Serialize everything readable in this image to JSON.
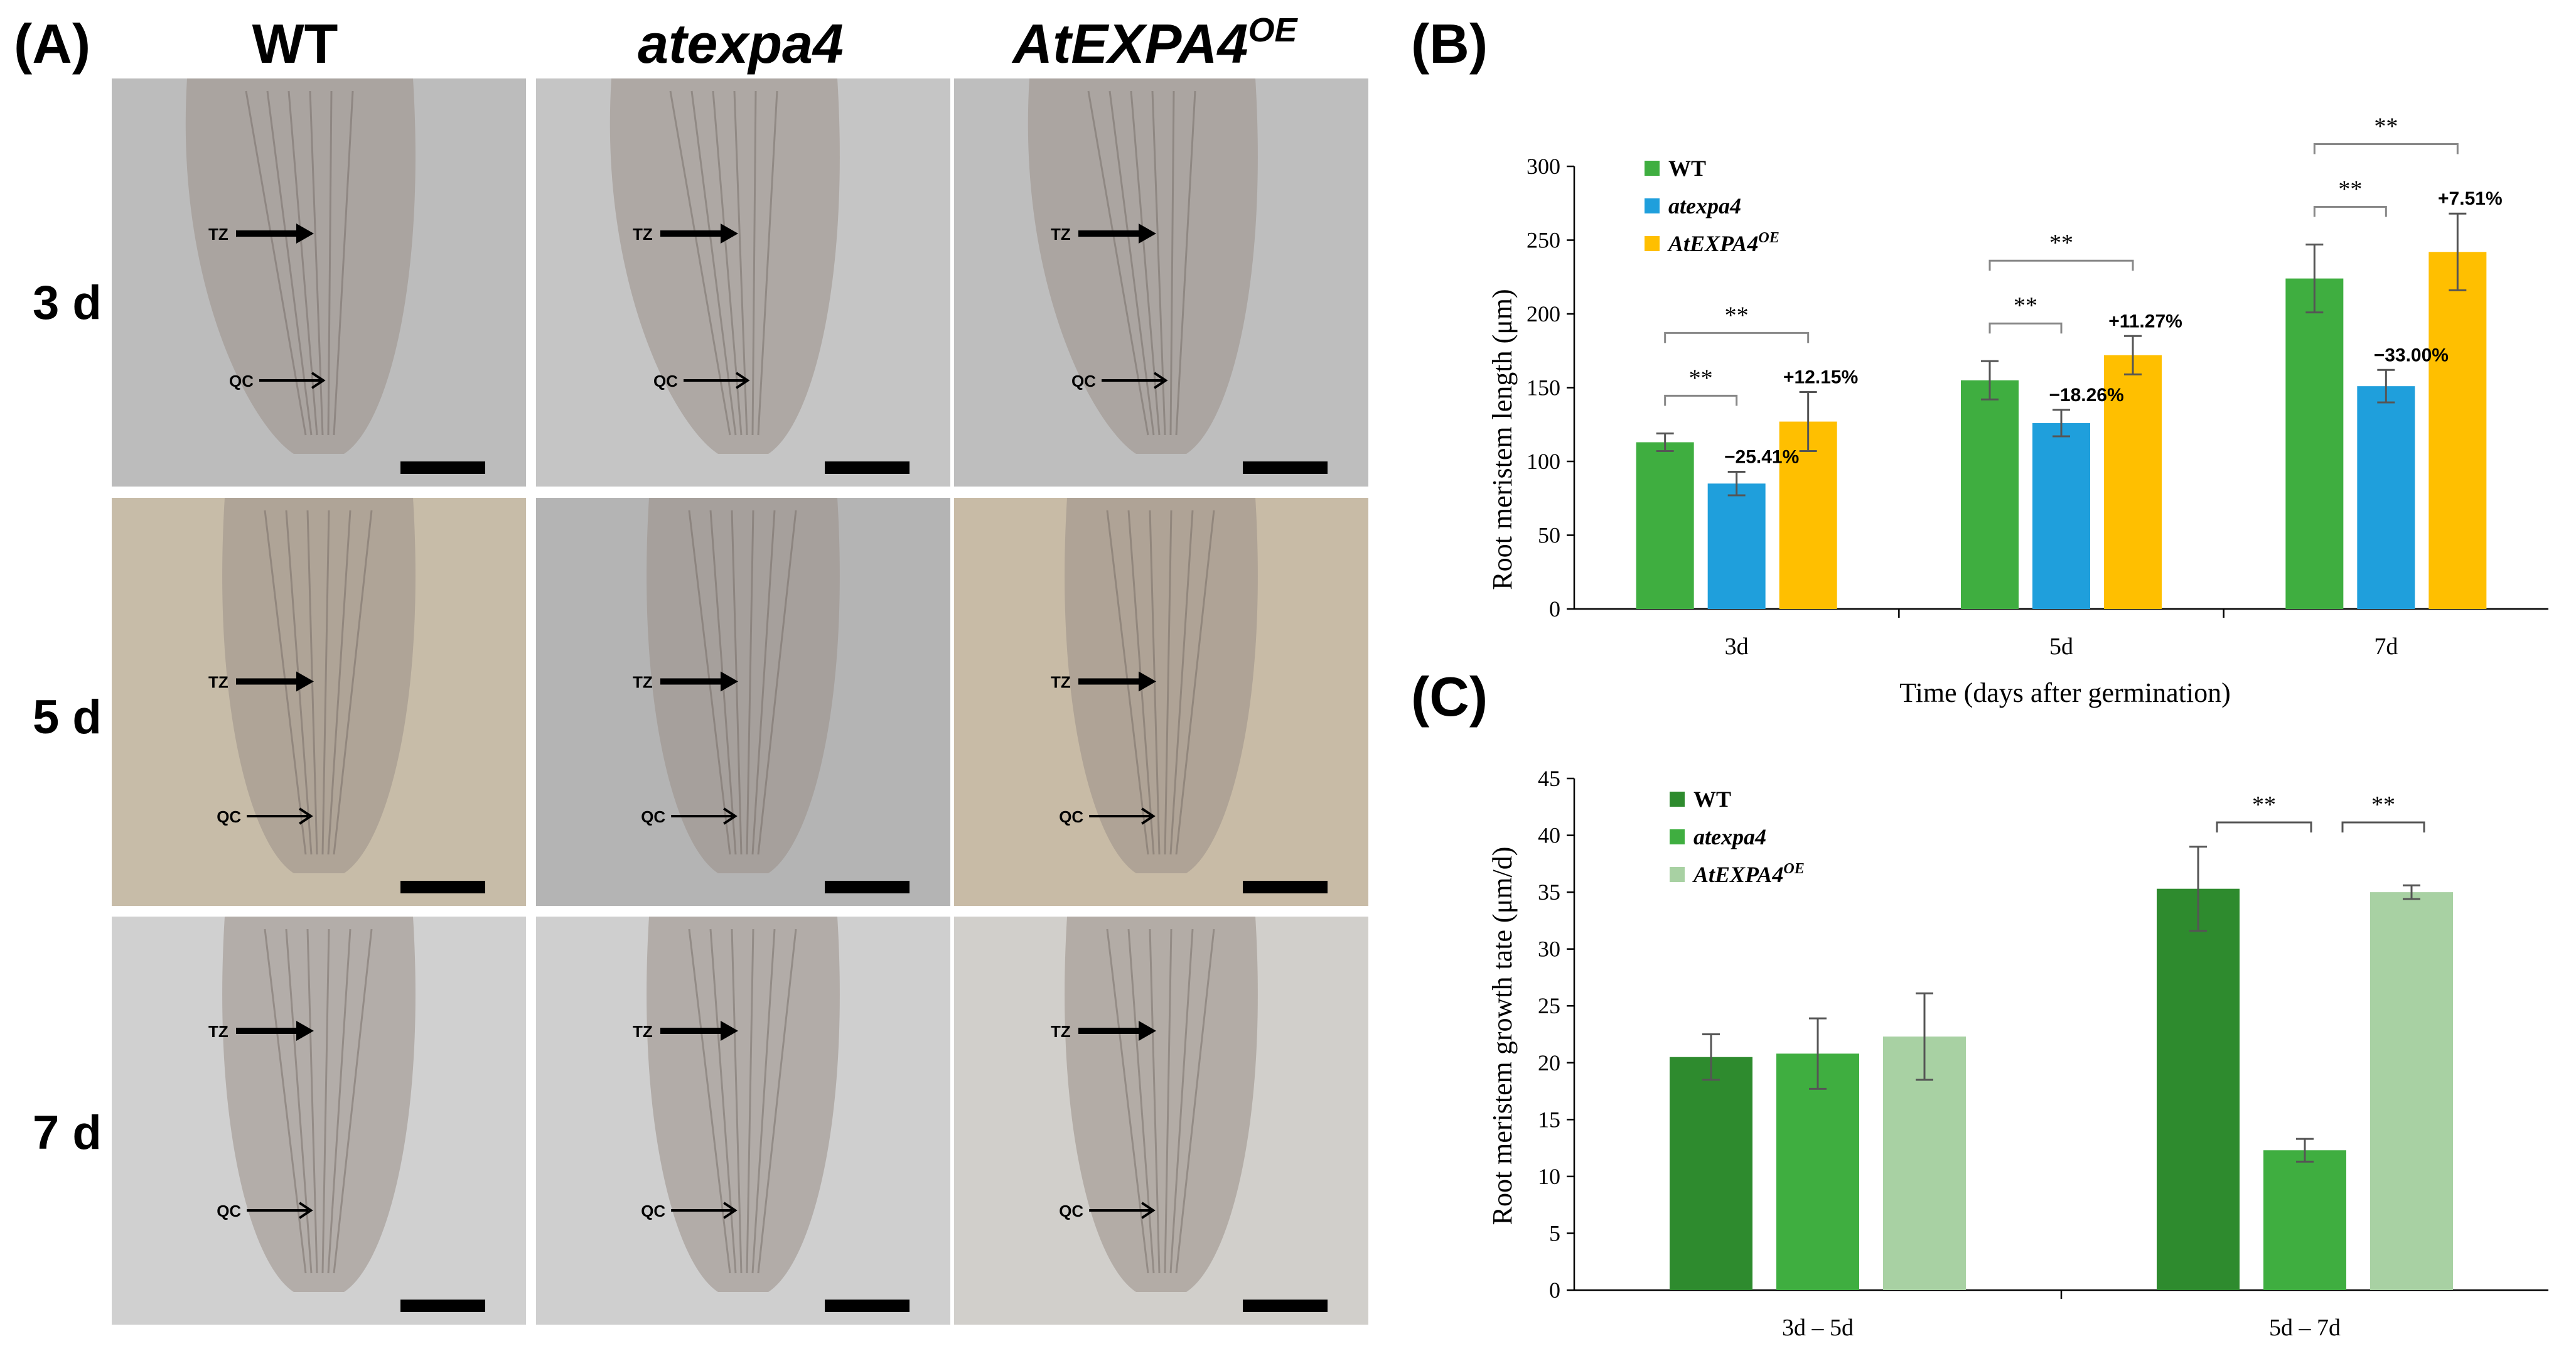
{
  "panelA": {
    "label": "(A)",
    "columns": [
      "WT",
      "atexpa4",
      "AtEXPA4"
    ],
    "oe_superscript": "OE",
    "rows": [
      "3 d",
      "5 d",
      "7 d"
    ],
    "marker_tz": "TZ",
    "marker_qc": "QC",
    "bg_colors": [
      [
        "#bcbcbc",
        "#c5c5c5",
        "#bebebe"
      ],
      [
        "#c7bca8",
        "#b4b4b4",
        "#c8bba6"
      ],
      [
        "#d0d0d0",
        "#cfcfcf",
        "#d1cfcb"
      ]
    ],
    "tissue_color": "#9b9089"
  },
  "chart_data": [
    {
      "panel_label": "(B)",
      "type": "bar",
      "categories": [
        "3d",
        "5d",
        "7d"
      ],
      "xlabel": "Time (days after germination)",
      "ylabel": "Root meristem length (μm)",
      "ylim": [
        0,
        300
      ],
      "yticks": [
        "0",
        "50",
        "100",
        "150",
        "200",
        "250",
        "300"
      ],
      "legend_position": "top-left",
      "series": [
        {
          "name": "WT",
          "color": "#3fae40",
          "values": [
            113,
            155,
            224
          ],
          "errors": [
            6,
            13,
            23
          ]
        },
        {
          "name": "atexpa4",
          "name_sup": "",
          "color": "#1f9fdc",
          "values": [
            85,
            126,
            151
          ],
          "errors": [
            8,
            9,
            11
          ]
        },
        {
          "name": "AtEXPA4",
          "name_sup": "OE",
          "color": "#ffbf00",
          "values": [
            127,
            172,
            242
          ],
          "errors": [
            20,
            13,
            26
          ]
        }
      ],
      "value_labels": [
        [
          "−25.41%",
          "+12.15%"
        ],
        [
          "−18.26%",
          "+11.27%"
        ],
        [
          "−33.00%",
          "+7.51%"
        ]
      ],
      "significance": "**"
    },
    {
      "panel_label": "(C)",
      "type": "bar",
      "categories": [
        "3d – 5d",
        "5d – 7d"
      ],
      "xlabel": "",
      "ylabel": "Root meristem growth tate (μm/d)",
      "ylim": [
        0,
        45
      ],
      "yticks": [
        "0",
        "5",
        "10",
        "15",
        "20",
        "25",
        "30",
        "35",
        "40",
        "45"
      ],
      "legend_position": "top-left",
      "series": [
        {
          "name": "WT",
          "color": "#2e8b2e",
          "values": [
            20.5,
            35.3
          ],
          "errors": [
            2.0,
            3.7
          ]
        },
        {
          "name": "atexpa4",
          "name_sup": "",
          "color": "#3fae40",
          "values": [
            20.8,
            12.3
          ],
          "errors": [
            3.1,
            1.0
          ]
        },
        {
          "name": "AtEXPA4",
          "name_sup": "OE",
          "color": "#a8d1a3",
          "values": [
            22.3,
            35.0
          ],
          "errors": [
            3.8,
            0.6
          ]
        }
      ],
      "significance": "**"
    }
  ]
}
